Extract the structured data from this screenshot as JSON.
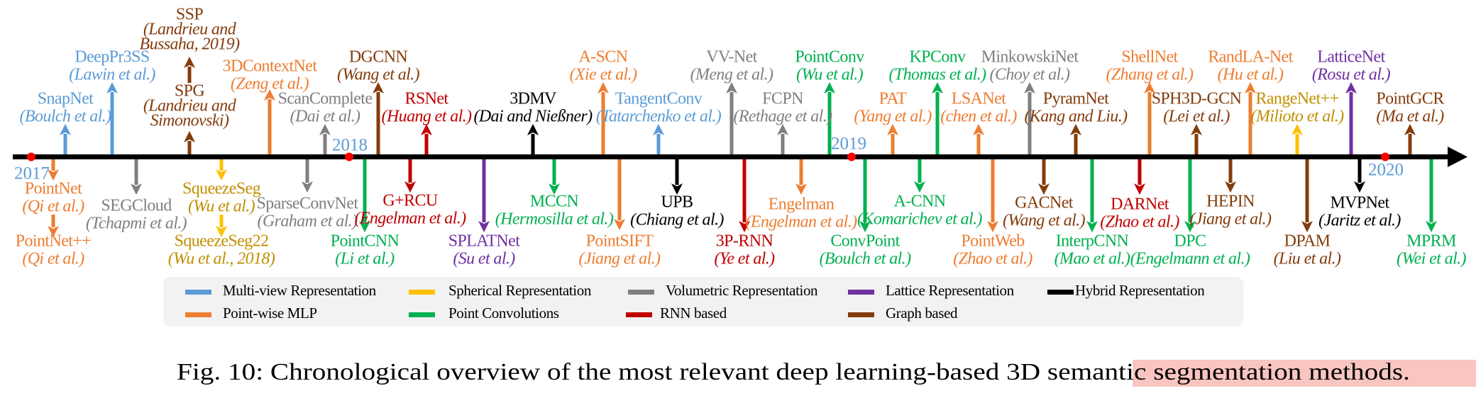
{
  "categories": {
    "multiview": {
      "label": "Multi-view Representation",
      "color": "#5b9bd5",
      "text_color": "#5b9bd5"
    },
    "spherical": {
      "label": "Spherical Representation",
      "color": "#ffc000",
      "text_color": "#bf9000"
    },
    "volumetric": {
      "label": "Volumetric Representation",
      "color": "#7f7f7f",
      "text_color": "#7f7f7f"
    },
    "lattice": {
      "label": "Lattice Representation",
      "color": "#7030a0",
      "text_color": "#7030a0"
    },
    "hybrid": {
      "label": "Hybrid Representation",
      "color": "#000000",
      "text_color": "#000000"
    },
    "pointwise": {
      "label": "Point-wise MLP",
      "color": "#ed7d31",
      "text_color": "#ed7d31"
    },
    "pointconv": {
      "label": "Point Convolutions",
      "color": "#00b050",
      "text_color": "#00b050"
    },
    "rnn": {
      "label": "RNN based",
      "color": "#c00000",
      "text_color": "#c00000"
    },
    "graph": {
      "label": "Graph based",
      "color": "#843c0c",
      "text_color": "#843c0c"
    }
  },
  "legend_order": [
    "multiview",
    "spherical",
    "volumetric",
    "lattice",
    "hybrid",
    "pointwise",
    "pointconv",
    "rnn",
    "graph"
  ],
  "years": [
    "2017",
    "2018",
    "2019",
    "2020"
  ],
  "above": [
    {
      "name": "SnapNet",
      "authors": "(Boulch et al.)",
      "cat": "multiview"
    },
    {
      "name": "DeepPr3SS",
      "authors": "(Lawin et al.)",
      "cat": "multiview"
    },
    {
      "name": "SPG",
      "authors": "(Landrieu and",
      "authors_line2": "Simonovski)",
      "cat": "graph"
    },
    {
      "name": "SSP",
      "authors": "(Landrieu and",
      "authors_line2": "Bussaha, 2019)",
      "cat": "graph"
    },
    {
      "name": "3DContextNet",
      "authors": "(Zeng et al.)",
      "cat": "pointwise"
    },
    {
      "name": "ScanComplete",
      "authors": "(Dai et al.)",
      "cat": "volumetric"
    },
    {
      "name": "DGCNN",
      "authors": "(Wang et al.)",
      "cat": "graph"
    },
    {
      "name": "RSNet",
      "authors": "(Huang et al.)",
      "cat": "rnn"
    },
    {
      "name": "3DMV",
      "authors": "(Dai and Nießner)",
      "cat": "hybrid"
    },
    {
      "name": "A-SCN",
      "authors": "(Xie et al.)",
      "cat": "pointwise"
    },
    {
      "name": "TangentConv",
      "authors": "(Tatarchenko et al.)",
      "cat": "multiview"
    },
    {
      "name": "VV-Net",
      "authors": "(Meng et al.)",
      "cat": "volumetric"
    },
    {
      "name": "FCPN",
      "authors": "(Rethage et al.)",
      "cat": "volumetric"
    },
    {
      "name": "PointConv",
      "authors": "(Wu et al.)",
      "cat": "pointconv"
    },
    {
      "name": "PAT",
      "authors": "(Yang et al.)",
      "cat": "pointwise"
    },
    {
      "name": "KPConv",
      "authors": "(Thomas et al.)",
      "cat": "pointconv"
    },
    {
      "name": "LSANet",
      "authors": "(chen et al.)",
      "cat": "pointwise"
    },
    {
      "name": "MinkowskiNet",
      "authors": "(Choy et al.)",
      "cat": "volumetric"
    },
    {
      "name": "PyramNet",
      "authors": "(Kang and Liu.)",
      "cat": "graph"
    },
    {
      "name": "ShellNet",
      "authors": "(Zhang et al.)",
      "cat": "pointwise"
    },
    {
      "name": "SPH3D-GCN",
      "authors": "(Lei et al.)",
      "cat": "graph"
    },
    {
      "name": "RandLA-Net",
      "authors": "(Hu et al.)",
      "cat": "pointwise"
    },
    {
      "name": "RangeNet++",
      "authors": "(Milioto et al.)",
      "cat": "spherical"
    },
    {
      "name": "LatticeNet",
      "authors": "(Rosu et al.)",
      "cat": "lattice"
    },
    {
      "name": "PointGCR",
      "authors": "(Ma et al.)",
      "cat": "graph"
    }
  ],
  "below": [
    {
      "name": "PointNet",
      "authors": "(Qi et al.)",
      "cat": "pointwise"
    },
    {
      "name": "PointNet++",
      "authors": "(Qi et al.)",
      "cat": "pointwise"
    },
    {
      "name": "SEGCloud",
      "authors": "(Tchapmi et al.)",
      "cat": "volumetric"
    },
    {
      "name": "SqueezeSeg",
      "authors": "(Wu et al.)",
      "cat": "spherical"
    },
    {
      "name": "SqueezeSeg22",
      "authors": "(Wu et al., 2018)",
      "cat": "spherical"
    },
    {
      "name": "SparseConvNet",
      "authors": "(Graham et al.)",
      "cat": "volumetric"
    },
    {
      "name": "PointCNN",
      "authors": "(Li et al.)",
      "cat": "pointconv"
    },
    {
      "name": "G+RCU",
      "authors": "(Engelman et al.)",
      "cat": "rnn"
    },
    {
      "name": "SPLATNet",
      "authors": "(Su et al.)",
      "cat": "lattice"
    },
    {
      "name": "MCCN",
      "authors": "(Hermosilla et al.)",
      "cat": "pointconv"
    },
    {
      "name": "PointSIFT",
      "authors": "(Jiang et al.)",
      "cat": "pointwise"
    },
    {
      "name": "UPB",
      "authors": "(Chiang et al.)",
      "cat": "hybrid"
    },
    {
      "name": "3P-RNN",
      "authors": "(Ye et al.)",
      "cat": "rnn"
    },
    {
      "name": "Engelman",
      "authors": "(Engelman et al.)",
      "cat": "pointwise"
    },
    {
      "name": "ConvPoint",
      "authors": "(Boulch et al.)",
      "cat": "pointconv"
    },
    {
      "name": "A-CNN",
      "authors": "(Komarichev et al.)",
      "cat": "pointconv"
    },
    {
      "name": "PointWeb",
      "authors": "(Zhao et al.)",
      "cat": "pointwise"
    },
    {
      "name": "GACNet",
      "authors": "(Wang et al.)",
      "cat": "graph"
    },
    {
      "name": "InterpCNN",
      "authors": "(Mao et al.)",
      "cat": "pointconv"
    },
    {
      "name": "DARNet",
      "authors": "(Zhao et al.)",
      "cat": "rnn"
    },
    {
      "name": "DPC",
      "authors": "(Engelmann et al.)",
      "cat": "pointconv"
    },
    {
      "name": "HEPIN",
      "authors": "(Jiang et al.)",
      "cat": "graph"
    },
    {
      "name": "DPAM",
      "authors": "(Liu et al.)",
      "cat": "graph"
    },
    {
      "name": "MVPNet",
      "authors": "(Jaritz et al.)",
      "cat": "hybrid"
    },
    {
      "name": "MPRM",
      "authors": "(Wei et al.)",
      "cat": "pointconv"
    }
  ],
  "caption": {
    "prefix": "Fig. 10: Chronological overview of the most relevant deep learning-based ",
    "highlight": "3D semantic segmentation methods",
    "suffix": ".",
    "highlight_color": "#f8c5c0"
  }
}
